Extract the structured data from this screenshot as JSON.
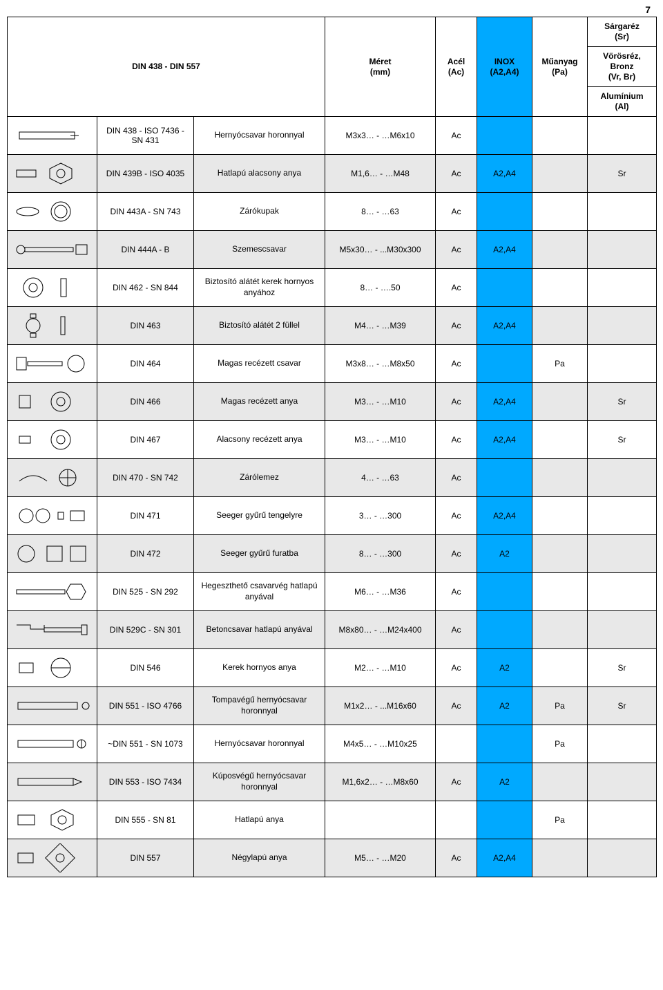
{
  "page_number": "7",
  "title": "DIN  438 - DIN  557",
  "colors": {
    "inox_bg": "#00a9ff",
    "alt_row_bg": "#e8e8e8",
    "border": "#000000",
    "text": "#000000"
  },
  "header": {
    "size_label": "Méret",
    "size_unit": "(mm)",
    "col_acel": "Acél",
    "col_acel_sub": "(Ac)",
    "col_inox": "INOX",
    "col_inox_sub": "(A2,A4)",
    "col_muanyag": "Műanyag",
    "col_muanyag_sub": "(Pa)",
    "col_sargarez": "Sárgaréz",
    "col_sargarez_sub": "(Sr)",
    "col_vorosrez": "Vörösréz, Bronz",
    "col_vorosrez_sub": "(Vr, Br)",
    "col_alum": "Alumínium",
    "col_alum_sub": "(Al)"
  },
  "rows": [
    {
      "std": "DIN  438 - ISO 7436 - SN  431",
      "desc": "Hernyócsavar horonnyal",
      "size": "M3x3… - …M6x10",
      "ac": "Ac",
      "inox": "",
      "pa": "",
      "last": ""
    },
    {
      "std": "DIN  439B - ISO 4035",
      "desc": "Hatlapú alacsony anya",
      "size": "M1,6… - …M48",
      "ac": "Ac",
      "inox": "A2,A4",
      "pa": "",
      "last": "Sr"
    },
    {
      "std": "DIN  443A - SN  743",
      "desc": "Zárókupak",
      "size": "8… - …63",
      "ac": "Ac",
      "inox": "",
      "pa": "",
      "last": ""
    },
    {
      "std": "DIN  444A - B",
      "desc": "Szemescsavar",
      "size": "M5x30… - ...M30x300",
      "ac": "Ac",
      "inox": "A2,A4",
      "pa": "",
      "last": ""
    },
    {
      "std": "DIN  462 - SN  844",
      "desc": "Biztosító alátét kerek hornyos anyához",
      "size": "8… - ….50",
      "ac": "Ac",
      "inox": "",
      "pa": "",
      "last": ""
    },
    {
      "std": "DIN  463",
      "desc": "Biztosító alátét 2 füllel",
      "size": "M4… - …M39",
      "ac": "Ac",
      "inox": "A2,A4",
      "pa": "",
      "last": ""
    },
    {
      "std": "DIN  464",
      "desc": "Magas recézett csavar",
      "size": "M3x8… - …M8x50",
      "ac": "Ac",
      "inox": "",
      "pa": "Pa",
      "last": ""
    },
    {
      "std": "DIN  466",
      "desc": "Magas recézett anya",
      "size": "M3… - …M10",
      "ac": "Ac",
      "inox": "A2,A4",
      "pa": "",
      "last": "Sr"
    },
    {
      "std": "DIN  467",
      "desc": "Alacsony recézett anya",
      "size": "M3… - …M10",
      "ac": "Ac",
      "inox": "A2,A4",
      "pa": "",
      "last": "Sr"
    },
    {
      "std": "DIN  470 - SN  742",
      "desc": "Zárólemez",
      "size": "4… - …63",
      "ac": "Ac",
      "inox": "",
      "pa": "",
      "last": ""
    },
    {
      "std": "DIN  471",
      "desc": "Seeger gyűrű tengelyre",
      "size": "3… - …300",
      "ac": "Ac",
      "inox": "A2,A4",
      "pa": "",
      "last": ""
    },
    {
      "std": "DIN  472",
      "desc": "Seeger gyűrű furatba",
      "size": "8… - …300",
      "ac": "Ac",
      "inox": "A2",
      "pa": "",
      "last": ""
    },
    {
      "std": "DIN  525 - SN  292",
      "desc": "Hegeszthető csavarvég hatlapú anyával",
      "size": "M6… - …M36",
      "ac": "Ac",
      "inox": "",
      "pa": "",
      "last": ""
    },
    {
      "std": "DIN  529C - SN  301",
      "desc": "Betoncsavar hatlapú anyával",
      "size": "M8x80… - …M24x400",
      "ac": "Ac",
      "inox": "",
      "pa": "",
      "last": ""
    },
    {
      "std": "DIN  546",
      "desc": "Kerek hornyos anya",
      "size": "M2… - …M10",
      "ac": "Ac",
      "inox": "A2",
      "pa": "",
      "last": "Sr"
    },
    {
      "std": "DIN  551 - ISO 4766",
      "desc": "Tompavégű hernyócsavar horonnyal",
      "size": "M1x2… - ...M16x60",
      "ac": "Ac",
      "inox": "A2",
      "pa": "Pa",
      "last": "Sr"
    },
    {
      "std": "~DIN  551 - SN 1073",
      "desc": "Hernyócsavar horonnyal",
      "size": "M4x5… - …M10x25",
      "ac": "",
      "inox": "",
      "pa": "Pa",
      "last": ""
    },
    {
      "std": "DIN  553 - ISO 7434",
      "desc": "Kúposvégű hernyócsavar horonnyal",
      "size": "M1,6x2… - …M8x60",
      "ac": "Ac",
      "inox": "A2",
      "pa": "",
      "last": ""
    },
    {
      "std": "DIN  555 - SN   81",
      "desc": "Hatlapú anya",
      "size": "",
      "ac": "",
      "inox": "",
      "pa": "Pa",
      "last": ""
    },
    {
      "std": "DIN  557",
      "desc": "Négylapú anya",
      "size": "M5… - …M20",
      "ac": "Ac",
      "inox": "A2,A4",
      "pa": "",
      "last": ""
    }
  ]
}
